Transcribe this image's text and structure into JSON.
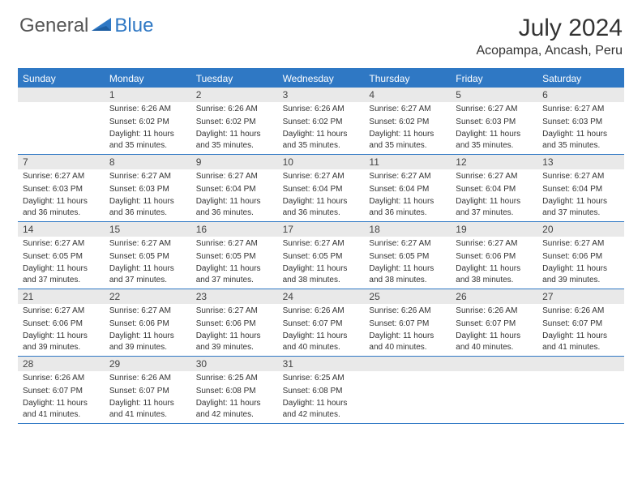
{
  "logo": {
    "general": "General",
    "blue": "Blue"
  },
  "title": "July 2024",
  "location": "Acopampa, Ancash, Peru",
  "colors": {
    "accent": "#2f78c4",
    "daybar": "#e9e9e9",
    "text": "#333333",
    "background": "#ffffff"
  },
  "days_of_week": [
    "Sunday",
    "Monday",
    "Tuesday",
    "Wednesday",
    "Thursday",
    "Friday",
    "Saturday"
  ],
  "weeks": [
    [
      {
        "n": "",
        "blank": true
      },
      {
        "n": "1",
        "sunrise": "6:26 AM",
        "sunset": "6:02 PM",
        "daylight": "11 hours and 35 minutes."
      },
      {
        "n": "2",
        "sunrise": "6:26 AM",
        "sunset": "6:02 PM",
        "daylight": "11 hours and 35 minutes."
      },
      {
        "n": "3",
        "sunrise": "6:26 AM",
        "sunset": "6:02 PM",
        "daylight": "11 hours and 35 minutes."
      },
      {
        "n": "4",
        "sunrise": "6:27 AM",
        "sunset": "6:02 PM",
        "daylight": "11 hours and 35 minutes."
      },
      {
        "n": "5",
        "sunrise": "6:27 AM",
        "sunset": "6:03 PM",
        "daylight": "11 hours and 35 minutes."
      },
      {
        "n": "6",
        "sunrise": "6:27 AM",
        "sunset": "6:03 PM",
        "daylight": "11 hours and 35 minutes."
      }
    ],
    [
      {
        "n": "7",
        "sunrise": "6:27 AM",
        "sunset": "6:03 PM",
        "daylight": "11 hours and 36 minutes."
      },
      {
        "n": "8",
        "sunrise": "6:27 AM",
        "sunset": "6:03 PM",
        "daylight": "11 hours and 36 minutes."
      },
      {
        "n": "9",
        "sunrise": "6:27 AM",
        "sunset": "6:04 PM",
        "daylight": "11 hours and 36 minutes."
      },
      {
        "n": "10",
        "sunrise": "6:27 AM",
        "sunset": "6:04 PM",
        "daylight": "11 hours and 36 minutes."
      },
      {
        "n": "11",
        "sunrise": "6:27 AM",
        "sunset": "6:04 PM",
        "daylight": "11 hours and 36 minutes."
      },
      {
        "n": "12",
        "sunrise": "6:27 AM",
        "sunset": "6:04 PM",
        "daylight": "11 hours and 37 minutes."
      },
      {
        "n": "13",
        "sunrise": "6:27 AM",
        "sunset": "6:04 PM",
        "daylight": "11 hours and 37 minutes."
      }
    ],
    [
      {
        "n": "14",
        "sunrise": "6:27 AM",
        "sunset": "6:05 PM",
        "daylight": "11 hours and 37 minutes."
      },
      {
        "n": "15",
        "sunrise": "6:27 AM",
        "sunset": "6:05 PM",
        "daylight": "11 hours and 37 minutes."
      },
      {
        "n": "16",
        "sunrise": "6:27 AM",
        "sunset": "6:05 PM",
        "daylight": "11 hours and 37 minutes."
      },
      {
        "n": "17",
        "sunrise": "6:27 AM",
        "sunset": "6:05 PM",
        "daylight": "11 hours and 38 minutes."
      },
      {
        "n": "18",
        "sunrise": "6:27 AM",
        "sunset": "6:05 PM",
        "daylight": "11 hours and 38 minutes."
      },
      {
        "n": "19",
        "sunrise": "6:27 AM",
        "sunset": "6:06 PM",
        "daylight": "11 hours and 38 minutes."
      },
      {
        "n": "20",
        "sunrise": "6:27 AM",
        "sunset": "6:06 PM",
        "daylight": "11 hours and 39 minutes."
      }
    ],
    [
      {
        "n": "21",
        "sunrise": "6:27 AM",
        "sunset": "6:06 PM",
        "daylight": "11 hours and 39 minutes."
      },
      {
        "n": "22",
        "sunrise": "6:27 AM",
        "sunset": "6:06 PM",
        "daylight": "11 hours and 39 minutes."
      },
      {
        "n": "23",
        "sunrise": "6:27 AM",
        "sunset": "6:06 PM",
        "daylight": "11 hours and 39 minutes."
      },
      {
        "n": "24",
        "sunrise": "6:26 AM",
        "sunset": "6:07 PM",
        "daylight": "11 hours and 40 minutes."
      },
      {
        "n": "25",
        "sunrise": "6:26 AM",
        "sunset": "6:07 PM",
        "daylight": "11 hours and 40 minutes."
      },
      {
        "n": "26",
        "sunrise": "6:26 AM",
        "sunset": "6:07 PM",
        "daylight": "11 hours and 40 minutes."
      },
      {
        "n": "27",
        "sunrise": "6:26 AM",
        "sunset": "6:07 PM",
        "daylight": "11 hours and 41 minutes."
      }
    ],
    [
      {
        "n": "28",
        "sunrise": "6:26 AM",
        "sunset": "6:07 PM",
        "daylight": "11 hours and 41 minutes."
      },
      {
        "n": "29",
        "sunrise": "6:26 AM",
        "sunset": "6:07 PM",
        "daylight": "11 hours and 41 minutes."
      },
      {
        "n": "30",
        "sunrise": "6:25 AM",
        "sunset": "6:08 PM",
        "daylight": "11 hours and 42 minutes."
      },
      {
        "n": "31",
        "sunrise": "6:25 AM",
        "sunset": "6:08 PM",
        "daylight": "11 hours and 42 minutes."
      },
      {
        "n": "",
        "blank": true
      },
      {
        "n": "",
        "blank": true
      },
      {
        "n": "",
        "blank": true
      }
    ]
  ],
  "labels": {
    "sunrise": "Sunrise:",
    "sunset": "Sunset:",
    "daylight": "Daylight:"
  }
}
